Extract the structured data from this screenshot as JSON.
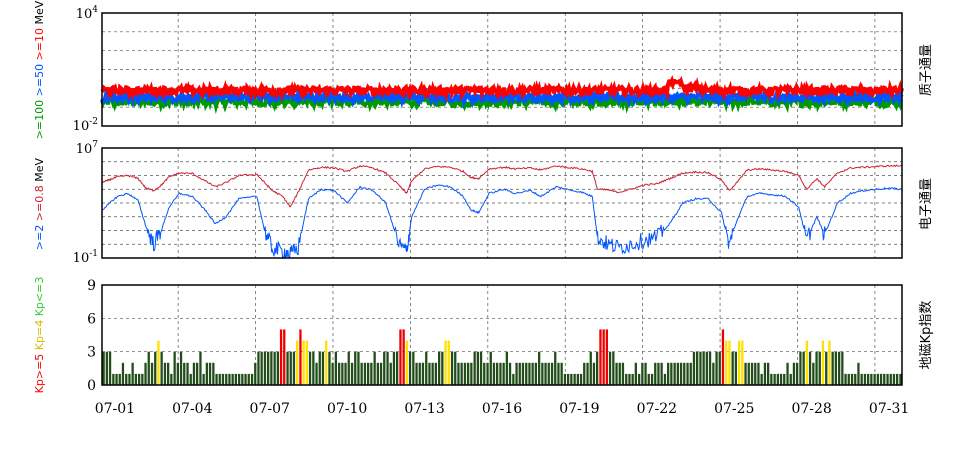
{
  "panels": {
    "proton": {
      "title": "质子通量",
      "ytop": {
        "base": "10",
        "exp": "4"
      },
      "ybot": {
        "base": "10",
        "exp": "-2"
      },
      "ylabel": [
        {
          "text": ">=100",
          "color": "#009900"
        },
        {
          "text": " >=50",
          "color": "#0055ff"
        },
        {
          "text": " >=10",
          "color": "#ff0000"
        },
        {
          "text": " MeV",
          "color": "#000000"
        }
      ]
    },
    "electron": {
      "title": "电子通量",
      "ytop": {
        "base": "10",
        "exp": "7"
      },
      "ybot": {
        "base": "10",
        "exp": "-1"
      },
      "ylabel": [
        {
          "text": ">=2",
          "color": "#0055ff"
        },
        {
          "text": " >=0.8",
          "color": "#cc2233"
        },
        {
          "text": " MeV",
          "color": "#000000"
        }
      ]
    },
    "kp": {
      "title": "地磁Kp指数",
      "yticks": [
        "9",
        "6",
        "3",
        "0"
      ],
      "ylabel": [
        {
          "text": "Kp>=5",
          "color": "#ff0000"
        },
        {
          "text": " Kp=4",
          "color": "#ddbb00"
        },
        {
          "text": " Kp<=3",
          "color": "#33cc33"
        }
      ]
    }
  },
  "xticks": [
    "07-01",
    "07-04",
    "07-07",
    "07-10",
    "07-13",
    "07-16",
    "07-19",
    "07-22",
    "07-25",
    "07-28",
    "07-31"
  ],
  "chart_data": [
    {
      "type": "line",
      "panel": "proton",
      "yscale": "log",
      "ylim": [
        0.01,
        10000
      ],
      "x_days": [
        1,
        32
      ],
      "series": [
        {
          "name": ">=10 MeV",
          "color": "#ff0000",
          "level": 0.8,
          "spike_day": 23.2,
          "spike_level": 2.0
        },
        {
          "name": ">=50 MeV",
          "color": "#0055ff",
          "level": 0.35
        },
        {
          "name": ">=100 MeV",
          "color": "#009900",
          "level": 0.2
        }
      ]
    },
    {
      "type": "line",
      "panel": "electron",
      "yscale": "log",
      "ylim": [
        0.1,
        10000000
      ],
      "x_days": [
        1,
        32
      ],
      "series": [
        {
          "name": ">=0.8 MeV",
          "color": "#cc2233",
          "points": [
            [
              1,
              30000
            ],
            [
              1.3,
              50000
            ],
            [
              1.6,
              80000
            ],
            [
              2,
              100000
            ],
            [
              2.4,
              60000
            ],
            [
              2.7,
              12000
            ],
            [
              3,
              8000
            ],
            [
              3.3,
              20000
            ],
            [
              3.6,
              80000
            ],
            [
              4,
              150000
            ],
            [
              4.5,
              140000
            ],
            [
              5,
              40000
            ],
            [
              5.4,
              15000
            ],
            [
              5.8,
              30000
            ],
            [
              6.3,
              100000
            ],
            [
              7,
              120000
            ],
            [
              7.3,
              30000
            ],
            [
              7.6,
              8000
            ],
            [
              8,
              3000
            ],
            [
              8.3,
              500
            ],
            [
              8.6,
              6000
            ],
            [
              9,
              250000
            ],
            [
              9.5,
              400000
            ],
            [
              10,
              350000
            ],
            [
              10.5,
              200000
            ],
            [
              11,
              500000
            ],
            [
              11.5,
              350000
            ],
            [
              12,
              150000
            ],
            [
              12.5,
              20000
            ],
            [
              12.8,
              5000
            ],
            [
              13,
              40000
            ],
            [
              13.5,
              300000
            ],
            [
              14,
              450000
            ],
            [
              14.5,
              400000
            ],
            [
              15,
              200000
            ],
            [
              15.3,
              70000
            ],
            [
              15.6,
              60000
            ],
            [
              16,
              300000
            ],
            [
              16.6,
              400000
            ],
            [
              17,
              300000
            ],
            [
              17.6,
              350000
            ],
            [
              18,
              250000
            ],
            [
              18.6,
              500000
            ],
            [
              19,
              400000
            ],
            [
              19.6,
              300000
            ],
            [
              20,
              200000
            ],
            [
              20.2,
              10000
            ],
            [
              20.6,
              9000
            ],
            [
              21,
              6000
            ],
            [
              21.5,
              10000
            ],
            [
              22,
              20000
            ],
            [
              22.5,
              25000
            ],
            [
              23,
              60000
            ],
            [
              23.5,
              150000
            ],
            [
              24,
              180000
            ],
            [
              24.5,
              160000
            ],
            [
              25,
              50000
            ],
            [
              25.3,
              8000
            ],
            [
              25.6,
              30000
            ],
            [
              26,
              250000
            ],
            [
              26.5,
              300000
            ],
            [
              27,
              250000
            ],
            [
              27.5,
              200000
            ],
            [
              28,
              100000
            ],
            [
              28.3,
              10000
            ],
            [
              28.7,
              60000
            ],
            [
              29,
              15000
            ],
            [
              29.5,
              150000
            ],
            [
              30,
              350000
            ],
            [
              30.5,
              400000
            ],
            [
              31,
              450000
            ],
            [
              31.5,
              500000
            ],
            [
              32,
              500000
            ]
          ]
        },
        {
          "name": ">=2 MeV",
          "color": "#0055ff",
          "points": [
            [
              1,
              300
            ],
            [
              1.3,
              1000
            ],
            [
              1.6,
              3000
            ],
            [
              2,
              5000
            ],
            [
              2.4,
              1500
            ],
            [
              2.7,
              20
            ],
            [
              3,
              1
            ],
            [
              3.3,
              10
            ],
            [
              3.6,
              500
            ],
            [
              4,
              5000
            ],
            [
              4.5,
              3000
            ],
            [
              5,
              300
            ],
            [
              5.4,
              30
            ],
            [
              5.8,
              100
            ],
            [
              6.3,
              2000
            ],
            [
              7,
              3000
            ],
            [
              7.3,
              10
            ],
            [
              7.6,
              0.5
            ],
            [
              8,
              0.3
            ],
            [
              8.3,
              0.2
            ],
            [
              8.6,
              0.5
            ],
            [
              9,
              2000
            ],
            [
              9.5,
              10000
            ],
            [
              10,
              8000
            ],
            [
              10.5,
              1000
            ],
            [
              11,
              15000
            ],
            [
              11.5,
              8000
            ],
            [
              12,
              1000
            ],
            [
              12.5,
              1
            ],
            [
              12.8,
              0.3
            ],
            [
              13,
              100
            ],
            [
              13.5,
              10000
            ],
            [
              14,
              20000
            ],
            [
              14.5,
              15000
            ],
            [
              15,
              3000
            ],
            [
              15.3,
              300
            ],
            [
              15.6,
              200
            ],
            [
              16,
              5000
            ],
            [
              16.6,
              10000
            ],
            [
              17,
              5000
            ],
            [
              17.6,
              8000
            ],
            [
              18,
              3000
            ],
            [
              18.6,
              15000
            ],
            [
              19,
              10000
            ],
            [
              19.6,
              6000
            ],
            [
              20,
              3000
            ],
            [
              20.2,
              3
            ],
            [
              20.6,
              1
            ],
            [
              21,
              0.6
            ],
            [
              21.5,
              1
            ],
            [
              22,
              2
            ],
            [
              22.5,
              3
            ],
            [
              23,
              30
            ],
            [
              23.5,
              1000
            ],
            [
              24,
              2000
            ],
            [
              24.5,
              2000
            ],
            [
              25,
              200
            ],
            [
              25.3,
              1
            ],
            [
              25.6,
              50
            ],
            [
              26,
              3000
            ],
            [
              26.5,
              5000
            ],
            [
              27,
              4000
            ],
            [
              27.5,
              3000
            ],
            [
              28,
              500
            ],
            [
              28.3,
              2
            ],
            [
              28.7,
              100
            ],
            [
              29,
              5
            ],
            [
              29.5,
              1000
            ],
            [
              30,
              5000
            ],
            [
              30.5,
              8000
            ],
            [
              31,
              10000
            ],
            [
              31.5,
              12000
            ],
            [
              32,
              10000
            ]
          ]
        }
      ]
    },
    {
      "type": "bar",
      "panel": "kp",
      "ylim": [
        0,
        9
      ],
      "x_days": [
        1,
        32
      ],
      "bars_per_day": 8,
      "colors": {
        "low": "#224d1a",
        "mid": "#ffe000",
        "high": "#ee0000"
      },
      "daily_kp": [
        [
          3,
          3,
          3,
          1,
          1,
          1,
          2,
          1
        ],
        [
          1,
          2,
          1,
          1,
          1,
          2,
          3,
          2
        ],
        [
          3,
          4,
          3,
          2,
          2,
          1,
          3,
          2
        ],
        [
          3,
          2,
          2,
          1,
          2,
          2,
          3,
          1
        ],
        [
          2,
          2,
          2,
          1,
          1,
          1,
          1,
          1
        ],
        [
          1,
          1,
          1,
          1,
          1,
          1,
          1,
          2
        ],
        [
          3,
          3,
          3,
          3,
          3,
          3,
          3,
          5
        ],
        [
          5,
          3,
          3,
          3,
          4,
          5,
          4,
          4
        ],
        [
          3,
          3,
          2,
          3,
          3,
          4,
          3,
          2
        ],
        [
          3,
          2,
          2,
          2,
          3,
          2,
          3,
          3
        ],
        [
          2,
          2,
          2,
          2,
          3,
          2,
          2,
          3
        ],
        [
          3,
          2,
          3,
          3,
          5,
          5,
          4,
          3
        ],
        [
          3,
          2,
          2,
          2,
          3,
          2,
          2,
          2
        ],
        [
          3,
          3,
          4,
          4,
          3,
          3,
          2,
          2
        ],
        [
          2,
          2,
          2,
          3,
          3,
          3,
          2,
          2
        ],
        [
          3,
          2,
          2,
          2,
          2,
          3,
          2,
          1
        ],
        [
          2,
          2,
          2,
          2,
          2,
          2,
          2,
          3
        ],
        [
          2,
          2,
          2,
          2,
          3,
          2,
          2,
          1
        ],
        [
          1,
          1,
          1,
          1,
          1,
          2,
          2,
          3
        ],
        [
          2,
          3,
          5,
          5,
          5,
          3,
          3,
          2
        ],
        [
          2,
          2,
          1,
          1,
          1,
          2,
          1,
          2
        ],
        [
          2,
          1,
          1,
          2,
          2,
          2,
          1,
          2
        ],
        [
          2,
          2,
          2,
          2,
          2,
          2,
          2,
          3
        ],
        [
          3,
          3,
          3,
          3,
          3,
          2,
          3,
          3
        ],
        [
          5,
          4,
          4,
          3,
          3,
          4,
          4,
          2
        ],
        [
          2,
          2,
          2,
          2,
          1,
          2,
          2,
          1
        ],
        [
          1,
          1,
          1,
          1,
          2,
          1,
          2,
          2
        ],
        [
          3,
          3,
          4,
          3,
          2,
          3,
          3,
          4
        ],
        [
          3,
          4,
          3,
          3,
          3,
          3,
          1,
          1
        ],
        [
          1,
          1,
          2,
          1,
          1,
          1,
          1,
          1
        ],
        [
          1,
          1,
          1,
          1,
          1,
          1,
          1,
          1
        ]
      ]
    }
  ]
}
